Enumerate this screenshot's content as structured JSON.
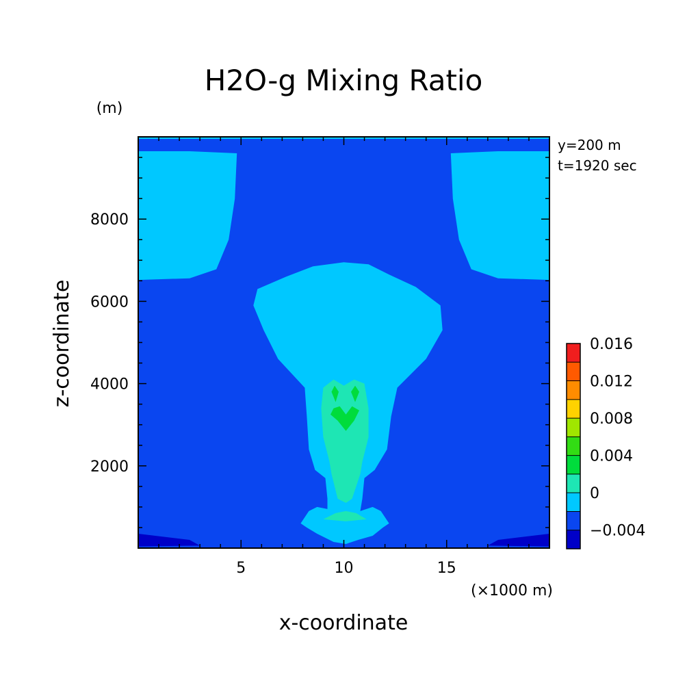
{
  "chart_data": {
    "type": "heatmap",
    "title": "H2O-g Mixing Ratio",
    "xlabel": "x-coordinate",
    "ylabel": "z-coordinate",
    "x_units": "(×1000 m)",
    "y_units": "(m)",
    "xlim": [
      0,
      20
    ],
    "ylim": [
      0,
      10000
    ],
    "x_ticks": [
      5,
      10,
      15
    ],
    "x_tick_labels": [
      "5",
      "10",
      "15"
    ],
    "y_ticks": [
      2000,
      4000,
      6000,
      8000
    ],
    "y_tick_labels": [
      "2000",
      "4000",
      "6000",
      "8000"
    ],
    "annotations": [
      "y=200 m",
      "t=1920 sec"
    ],
    "colorbar": {
      "tick_labels": [
        "0.016",
        "0.012",
        "0.008",
        "0.004",
        "0",
        "−0.004"
      ],
      "levels": [
        -0.004,
        -0.002,
        0,
        0.002,
        0.004,
        0.006,
        0.008,
        0.01,
        0.012,
        0.014,
        0.016
      ],
      "colors": [
        "#0000c8",
        "#0a46f0",
        "#00c8ff",
        "#1ee6b4",
        "#00dc3c",
        "#32dc14",
        "#a0e600",
        "#ffd200",
        "#ff8c00",
        "#ff5a00",
        "#f01e1e"
      ]
    },
    "regions": [
      {
        "name": "background",
        "level": 0,
        "color": "#0a46f0"
      },
      {
        "name": "top-strip",
        "level": 1,
        "color": "#00c8ff",
        "points": [
          [
            0,
            9950
          ],
          [
            20,
            9950
          ],
          [
            20,
            10000
          ],
          [
            0,
            10000
          ]
        ]
      },
      {
        "name": "upper-left-moist",
        "level": 1,
        "color": "#00c8ff",
        "points": [
          [
            0,
            6520
          ],
          [
            2.5,
            6560
          ],
          [
            3.8,
            6780
          ],
          [
            4.4,
            7500
          ],
          [
            4.7,
            8500
          ],
          [
            4.8,
            9600
          ],
          [
            2.5,
            9650
          ],
          [
            0,
            9650
          ]
        ]
      },
      {
        "name": "upper-right-moist",
        "level": 1,
        "color": "#00c8ff",
        "points": [
          [
            20,
            6520
          ],
          [
            17.5,
            6560
          ],
          [
            16.2,
            6780
          ],
          [
            15.6,
            7500
          ],
          [
            15.3,
            8500
          ],
          [
            15.2,
            9600
          ],
          [
            17.5,
            9650
          ],
          [
            20,
            9650
          ]
        ]
      },
      {
        "name": "plume-envelope",
        "level": 1,
        "color": "#00c8ff",
        "points": [
          [
            10,
            6950
          ],
          [
            11.2,
            6900
          ],
          [
            12.2,
            6650
          ],
          [
            13.5,
            6350
          ],
          [
            14.7,
            5900
          ],
          [
            14.8,
            5300
          ],
          [
            14.0,
            4600
          ],
          [
            12.6,
            3900
          ],
          [
            12.3,
            3200
          ],
          [
            12.1,
            2400
          ],
          [
            11.5,
            1900
          ],
          [
            11.0,
            1700
          ],
          [
            10.9,
            1200
          ],
          [
            10.8,
            900
          ],
          [
            11.4,
            1000
          ],
          [
            11.8,
            900
          ],
          [
            12.2,
            600
          ],
          [
            11.9,
            500
          ],
          [
            11.4,
            300
          ],
          [
            10.7,
            200
          ],
          [
            10.1,
            100
          ],
          [
            9.5,
            150
          ],
          [
            8.7,
            350
          ],
          [
            8.2,
            500
          ],
          [
            7.9,
            600
          ],
          [
            8.3,
            900
          ],
          [
            8.7,
            1000
          ],
          [
            9.2,
            950
          ],
          [
            9.2,
            1200
          ],
          [
            9.1,
            1700
          ],
          [
            8.6,
            1900
          ],
          [
            8.3,
            2400
          ],
          [
            8.2,
            3200
          ],
          [
            8.1,
            3900
          ],
          [
            6.8,
            4600
          ],
          [
            6.1,
            5300
          ],
          [
            5.6,
            5900
          ],
          [
            5.8,
            6300
          ],
          [
            7.2,
            6600
          ],
          [
            8.5,
            6850
          ]
        ]
      },
      {
        "name": "plume-core",
        "level": 2,
        "color": "#1ee6b4",
        "points": [
          [
            9.5,
            4100
          ],
          [
            10.0,
            3950
          ],
          [
            10.5,
            4100
          ],
          [
            11.0,
            4000
          ],
          [
            11.2,
            3400
          ],
          [
            11.2,
            2700
          ],
          [
            10.9,
            2100
          ],
          [
            10.8,
            1800
          ],
          [
            10.4,
            1200
          ],
          [
            10.1,
            1100
          ],
          [
            9.7,
            1200
          ],
          [
            9.4,
            1800
          ],
          [
            9.3,
            2100
          ],
          [
            9.0,
            2700
          ],
          [
            8.9,
            3400
          ],
          [
            9.0,
            3900
          ]
        ]
      },
      {
        "name": "plume-base-pocket",
        "level": 2,
        "color": "#1ee6b4",
        "points": [
          [
            9.0,
            700
          ],
          [
            9.6,
            850
          ],
          [
            10.1,
            900
          ],
          [
            10.6,
            850
          ],
          [
            11.1,
            700
          ],
          [
            10.1,
            650
          ]
        ]
      },
      {
        "name": "wet-core-left",
        "level": 3,
        "color": "#00dc3c",
        "points": [
          [
            9.55,
            3950
          ],
          [
            9.75,
            3800
          ],
          [
            9.6,
            3550
          ],
          [
            9.4,
            3800
          ]
        ]
      },
      {
        "name": "wet-core-right",
        "level": 3,
        "color": "#00dc3c",
        "points": [
          [
            10.55,
            3950
          ],
          [
            10.75,
            3800
          ],
          [
            10.55,
            3550
          ],
          [
            10.35,
            3800
          ]
        ]
      },
      {
        "name": "wet-core-center",
        "level": 3,
        "color": "#00dc3c",
        "points": [
          [
            9.5,
            3400
          ],
          [
            9.8,
            3450
          ],
          [
            10.1,
            3250
          ],
          [
            10.4,
            3450
          ],
          [
            10.75,
            3350
          ],
          [
            10.5,
            3100
          ],
          [
            10.1,
            2850
          ],
          [
            9.7,
            3100
          ],
          [
            9.35,
            3250
          ]
        ]
      },
      {
        "name": "dry-bottom-left",
        "level": -1,
        "color": "#0000c8",
        "points": [
          [
            0,
            40
          ],
          [
            3,
            60
          ],
          [
            2.5,
            200
          ],
          [
            0,
            350
          ]
        ]
      },
      {
        "name": "dry-bottom-right",
        "level": -1,
        "color": "#0000c8",
        "points": [
          [
            20,
            40
          ],
          [
            17,
            60
          ],
          [
            17.5,
            200
          ],
          [
            20,
            350
          ]
        ]
      }
    ]
  }
}
